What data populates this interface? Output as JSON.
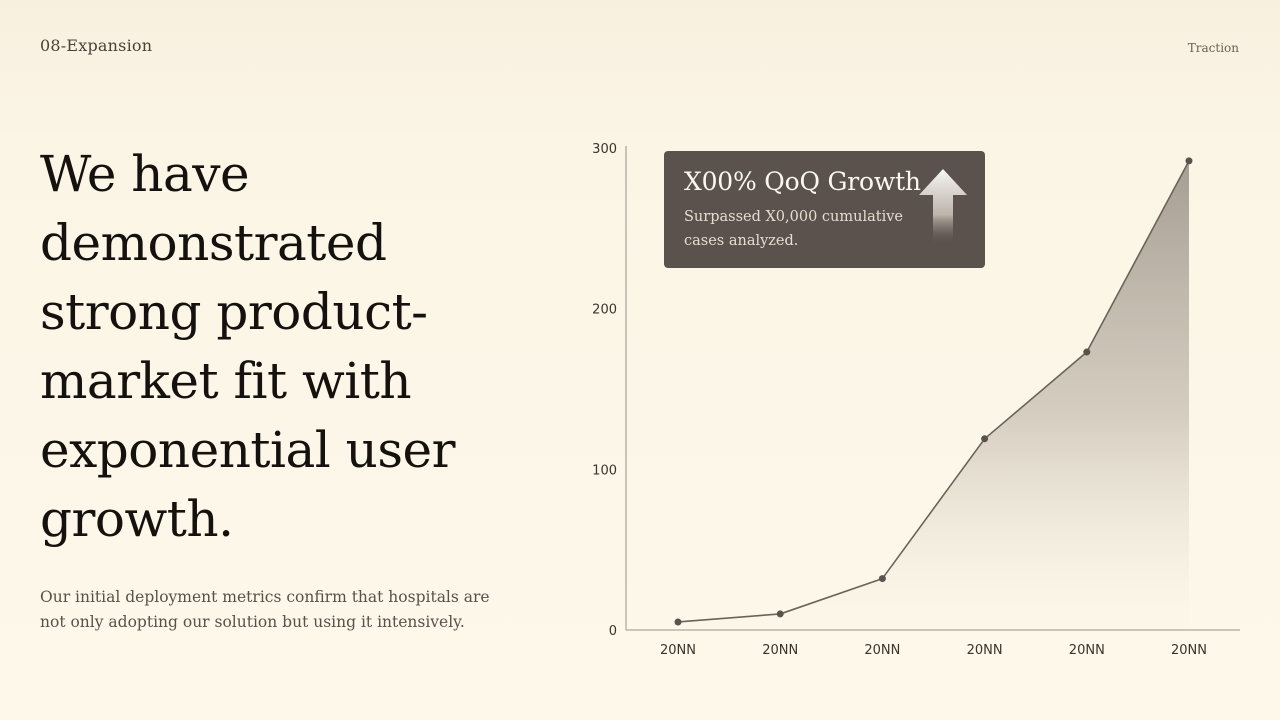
{
  "header": {
    "section": "08-Expansion",
    "tag": "Traction"
  },
  "headline": "We have demonstrated strong product-market fit with exponential user growth.",
  "body": "Our initial deployment metrics confirm that hospitals are not only adopting our solution but using it intensively.",
  "callout": {
    "title": "X00% QoQ Growth",
    "subtitle": "Surpassed X0,000 cumulative cases analyzed.",
    "icon": "up-arrow-icon"
  },
  "colors": {
    "background": "#fcf6e8",
    "line": "#6b625a",
    "area_top": "#a69e92",
    "callout_bg": "#5b524d"
  },
  "chart_data": {
    "type": "area",
    "categories": [
      "20NN",
      "20NN",
      "20NN",
      "20NN",
      "20NN",
      "20NN"
    ],
    "values": [
      5,
      10,
      32,
      119,
      173,
      292
    ],
    "yticks": [
      0,
      100,
      200,
      300
    ],
    "ylim": [
      0,
      300
    ],
    "title": "",
    "xlabel": "",
    "ylabel": "",
    "grid": false
  }
}
